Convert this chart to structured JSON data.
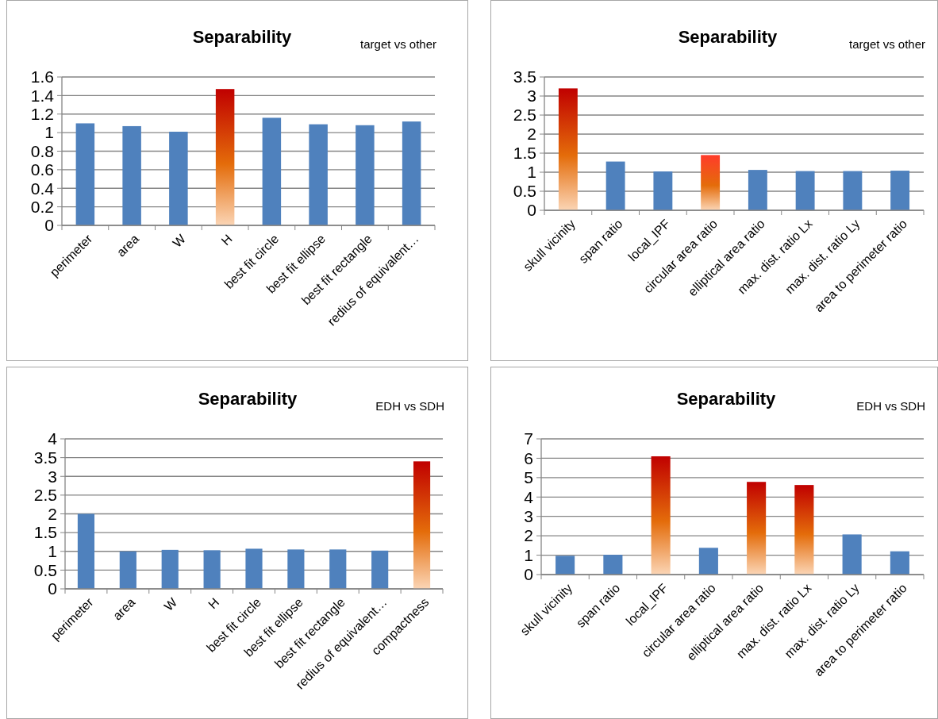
{
  "chart_data": [
    {
      "type": "bar",
      "title": "Separability",
      "subtitle": "target vs other",
      "categories": [
        "perimeter",
        "area",
        "W",
        "H",
        "best fit circle",
        "best fit ellipse",
        "best fit rectangle",
        "redius of equivalent…"
      ],
      "values": [
        1.1,
        1.07,
        1.01,
        1.47,
        1.16,
        1.09,
        1.08,
        1.12
      ],
      "colors": [
        "#4f81bd",
        "#4f81bd",
        "#4f81bd",
        "#c00000",
        "#4f81bd",
        "#4f81bd",
        "#4f81bd",
        "#4f81bd"
      ],
      "ylim": [
        0,
        1.6
      ],
      "yticks": [
        0,
        {
          "value": 0.2,
          "label": "0.2"
        },
        {
          "value": 0.4,
          "label": "0.4"
        },
        {
          "value": 0.6,
          "label": "0.6"
        },
        {
          "value": 0.8,
          "label": "0.8"
        },
        1,
        {
          "value": 1.2,
          "label": "1.2"
        },
        {
          "value": 1.4,
          "label": "1.4"
        },
        {
          "value": 1.6,
          "label": "1.6"
        }
      ],
      "grid": "y"
    },
    {
      "type": "bar",
      "title": "Separability",
      "subtitle": "target vs other",
      "categories": [
        "skull vicinity",
        "span ratio",
        "local_IPF",
        "circular area ratio",
        "elliptical area ratio",
        "max. dist. ratio Lx",
        "max. dist. ratio Ly",
        "area to perimeter ratio"
      ],
      "values": [
        3.2,
        1.28,
        1.02,
        1.45,
        1.06,
        1.03,
        1.03,
        1.04
      ],
      "colors": [
        "#c00000",
        "#4f81bd",
        "#4f81bd",
        "#ff3b2a",
        "#4f81bd",
        "#4f81bd",
        "#4f81bd",
        "#4f81bd"
      ],
      "ylim": [
        0,
        3.5
      ],
      "yticks": [
        0,
        0.5,
        1,
        1.5,
        2,
        2.5,
        3,
        3.5
      ],
      "grid": "y"
    },
    {
      "type": "bar",
      "title": "Separability",
      "subtitle": "EDH vs SDH",
      "categories": [
        "perimeter",
        "area",
        "W",
        "H",
        "best fit circle",
        "best fit ellipse",
        "best fit rectangle",
        "redius of equivalent…",
        "compactness"
      ],
      "values": [
        2.0,
        1.0,
        1.04,
        1.03,
        1.07,
        1.05,
        1.05,
        1.02,
        3.4
      ],
      "colors": [
        "#4f81bd",
        "#4f81bd",
        "#4f81bd",
        "#4f81bd",
        "#4f81bd",
        "#4f81bd",
        "#4f81bd",
        "#4f81bd",
        "#c00000"
      ],
      "ylim": [
        0,
        4
      ],
      "yticks": [
        0,
        0.5,
        1,
        1.5,
        2,
        2.5,
        3,
        3.5,
        4
      ],
      "grid": "y"
    },
    {
      "type": "bar",
      "title": "Separability",
      "subtitle": "EDH vs SDH",
      "categories": [
        "skull vicinity",
        "span ratio",
        "local_IPF",
        "circular area ratio",
        "elliptical area ratio",
        "max. dist. ratio Lx",
        "max. dist. ratio Ly",
        "area to perimeter ratio"
      ],
      "values": [
        0.97,
        1.02,
        6.1,
        1.38,
        4.78,
        4.62,
        2.07,
        1.2
      ],
      "colors": [
        "#4f81bd",
        "#4f81bd",
        "#c00000",
        "#4f81bd",
        "#c00000",
        "#c00000",
        "#4f81bd",
        "#4f81bd"
      ],
      "ylim": [
        0,
        7
      ],
      "yticks": [
        0,
        1,
        2,
        3,
        4,
        5,
        6,
        7
      ],
      "grid": "y"
    }
  ]
}
